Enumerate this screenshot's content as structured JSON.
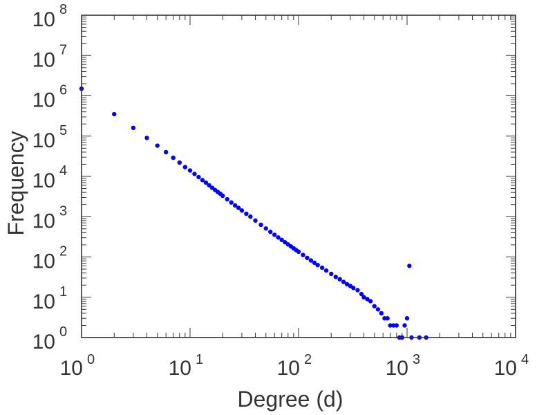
{
  "chart_data": {
    "type": "scatter",
    "xlabel": "Degree (d)",
    "ylabel": "Frequency",
    "xscale": "log",
    "yscale": "log",
    "xlim": [
      1,
      10000
    ],
    "ylim": [
      1,
      100000000
    ],
    "grid": false,
    "marker_color": "#0000ff",
    "x_tick_labels": [
      {
        "base": "10",
        "exp": "0"
      },
      {
        "base": "10",
        "exp": "1"
      },
      {
        "base": "10",
        "exp": "2"
      },
      {
        "base": "10",
        "exp": "3"
      },
      {
        "base": "10",
        "exp": "4"
      }
    ],
    "y_tick_labels": [
      {
        "base": "10",
        "exp": "0"
      },
      {
        "base": "10",
        "exp": "1"
      },
      {
        "base": "10",
        "exp": "2"
      },
      {
        "base": "10",
        "exp": "3"
      },
      {
        "base": "10",
        "exp": "4"
      },
      {
        "base": "10",
        "exp": "5"
      },
      {
        "base": "10",
        "exp": "6"
      },
      {
        "base": "10",
        "exp": "7"
      },
      {
        "base": "10",
        "exp": "8"
      }
    ],
    "points": [
      [
        1,
        1500000
      ],
      [
        2,
        350000
      ],
      [
        3,
        160000
      ],
      [
        4,
        90000
      ],
      [
        5,
        58000
      ],
      [
        6,
        40000
      ],
      [
        7,
        29000
      ],
      [
        8,
        22000
      ],
      [
        9,
        17000
      ],
      [
        10,
        14000
      ],
      [
        11,
        11500
      ],
      [
        12,
        9600
      ],
      [
        13,
        8100
      ],
      [
        14,
        7000
      ],
      [
        15,
        6000
      ],
      [
        16,
        5200
      ],
      [
        17,
        4600
      ],
      [
        18,
        4100
      ],
      [
        19,
        3700
      ],
      [
        20,
        3300
      ],
      [
        22,
        2700
      ],
      [
        24,
        2250
      ],
      [
        26,
        1900
      ],
      [
        28,
        1650
      ],
      [
        30,
        1420
      ],
      [
        33,
        1180
      ],
      [
        36,
        1000
      ],
      [
        40,
        800
      ],
      [
        45,
        630
      ],
      [
        50,
        510
      ],
      [
        55,
        420
      ],
      [
        60,
        355
      ],
      [
        65,
        305
      ],
      [
        70,
        265
      ],
      [
        75,
        232
      ],
      [
        80,
        205
      ],
      [
        85,
        183
      ],
      [
        90,
        164
      ],
      [
        95,
        148
      ],
      [
        100,
        135
      ],
      [
        110,
        112
      ],
      [
        120,
        95
      ],
      [
        130,
        82
      ],
      [
        140,
        72
      ],
      [
        150,
        63
      ],
      [
        165,
        54
      ],
      [
        180,
        46
      ],
      [
        200,
        38
      ],
      [
        220,
        32
      ],
      [
        240,
        28
      ],
      [
        260,
        24
      ],
      [
        280,
        21
      ],
      [
        300,
        19
      ],
      [
        320,
        17
      ],
      [
        350,
        15
      ],
      [
        380,
        12
      ],
      [
        400,
        10
      ],
      [
        430,
        9
      ],
      [
        460,
        8
      ],
      [
        500,
        6
      ],
      [
        540,
        5
      ],
      [
        580,
        4
      ],
      [
        620,
        3
      ],
      [
        660,
        3
      ],
      [
        700,
        2
      ],
      [
        750,
        2
      ],
      [
        800,
        2
      ],
      [
        850,
        1
      ],
      [
        900,
        1
      ],
      [
        950,
        2
      ],
      [
        1000,
        3
      ],
      [
        1050,
        60
      ],
      [
        1100,
        1
      ],
      [
        1300,
        1
      ],
      [
        1500,
        1
      ]
    ]
  }
}
